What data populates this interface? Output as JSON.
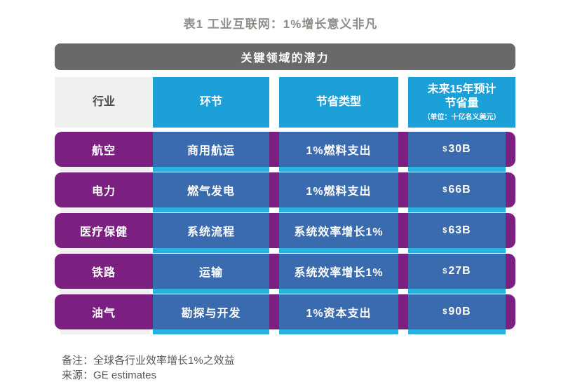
{
  "page": {
    "title": "表1 工业互联网：1%增长意义非凡"
  },
  "banner": {
    "label": "关键领域的潜力"
  },
  "table": {
    "headers": {
      "industry": "行业",
      "segment": "环节",
      "saving_type": "节省类型",
      "savings_line1": "未来15年预计",
      "savings_line2": "节省量",
      "savings_unit": "（单位：十亿名义美元）"
    },
    "rows": [
      {
        "industry": "航空",
        "segment": "商用航运",
        "saving_type": "1%燃料支出",
        "amount_symbol": "$",
        "amount_value": "30B"
      },
      {
        "industry": "电力",
        "segment": "燃气发电",
        "saving_type": "1%燃料支出",
        "amount_symbol": "$",
        "amount_value": "66B"
      },
      {
        "industry": "医疗保健",
        "segment": "系统流程",
        "saving_type": "系统效率增长1%",
        "amount_symbol": "$",
        "amount_value": "63B"
      },
      {
        "industry": "铁路",
        "segment": "运输",
        "saving_type": "系统效率增长1%",
        "amount_symbol": "$",
        "amount_value": "27B"
      },
      {
        "industry": "油气",
        "segment": "勘探与开发",
        "saving_type": "1%资本支出",
        "amount_symbol": "$",
        "amount_value": "90B"
      }
    ]
  },
  "footnotes": {
    "note": "备注：全球各行业效率增长1%之效益",
    "source": "来源：GE estimates"
  },
  "colors": {
    "row_purple": "#7b1f80",
    "cell_blue": "#3a6bae",
    "header_cyan": "#1ba0d8",
    "underline_cyan": "#29b2e0",
    "banner_gray": "#696969",
    "header_light": "#eef1ee",
    "title_gray": "#908e89"
  },
  "chart_data": {
    "type": "table",
    "title": "表1 工业互联网：1%增长意义非凡",
    "subtitle": "关键领域的潜力",
    "columns": [
      "行业",
      "环节",
      "节省类型",
      "未来15年预计节省量（单位：十亿名义美元）"
    ],
    "rows": [
      [
        "航空",
        "商用航运",
        "1%燃料支出",
        "$30B"
      ],
      [
        "电力",
        "燃气发电",
        "1%燃料支出",
        "$66B"
      ],
      [
        "医疗保健",
        "系统流程",
        "系统效率增长1%",
        "$63B"
      ],
      [
        "铁路",
        "运输",
        "系统效率增长1%",
        "$27B"
      ],
      [
        "油气",
        "勘探与开发",
        "1%资本支出",
        "$90B"
      ]
    ],
    "values_billions_usd": [
      30,
      66,
      63,
      27,
      90
    ],
    "note": "备注：全球各行业效率增长1%之效益",
    "source": "来源：GE estimates"
  }
}
